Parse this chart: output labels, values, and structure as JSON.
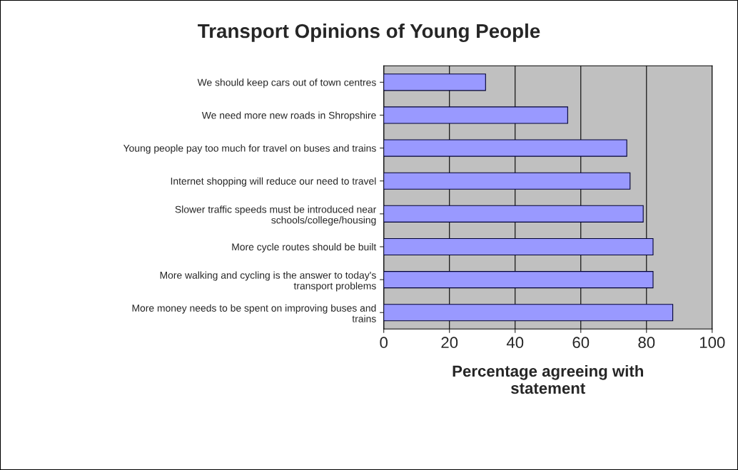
{
  "chart_data": {
    "type": "bar",
    "orientation": "horizontal",
    "title": "Transport Opinions of Young People",
    "categories": [
      "We should keep cars out of town centres",
      "We need more new roads in Shropshire",
      "Young people pay too much for travel on buses and trains",
      "Internet shopping will reduce our need to travel",
      "Slower traffic speeds must be introduced near\nschools/college/housing",
      "More cycle routes should be built",
      "More walking and cycling is the answer to today's\ntransport problems",
      "More money needs to be spent on improving buses and\ntrains"
    ],
    "values": [
      31,
      56,
      74,
      75,
      79,
      82,
      82,
      88
    ],
    "color": "#9999ff",
    "xlabel": "Percentage agreeing with\nstatement",
    "xlim": [
      0,
      100
    ],
    "xticks": [
      0,
      20,
      40,
      60,
      80,
      100
    ],
    "grid": "x"
  }
}
